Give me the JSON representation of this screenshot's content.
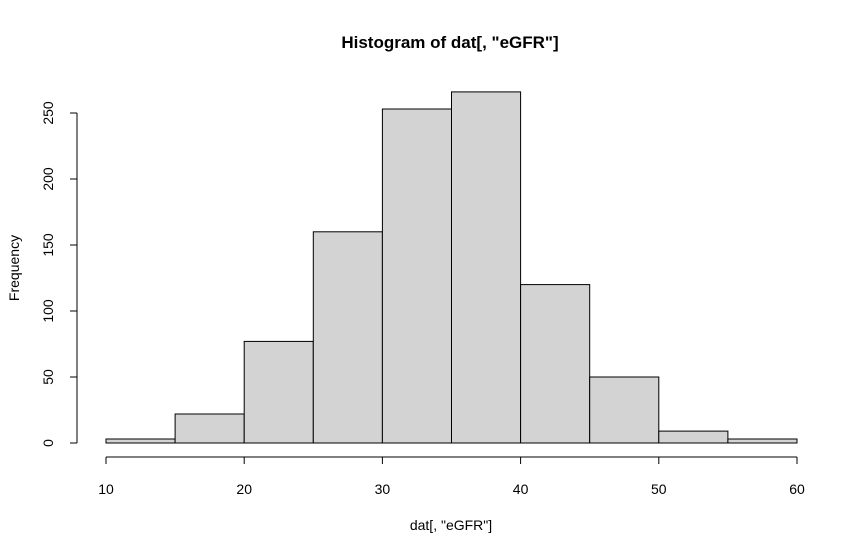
{
  "chart_data": {
    "type": "bar",
    "title": "Histogram of dat[, \"eGFR\"]",
    "xlabel": "dat[, \"eGFR\"]",
    "ylabel": "Frequency",
    "xlim": [
      10,
      60
    ],
    "ylim": [
      0,
      265
    ],
    "bins": [
      {
        "start": 10,
        "end": 15,
        "value": 3
      },
      {
        "start": 15,
        "end": 20,
        "value": 22
      },
      {
        "start": 20,
        "end": 25,
        "value": 77
      },
      {
        "start": 25,
        "end": 30,
        "value": 160
      },
      {
        "start": 30,
        "end": 35,
        "value": 253
      },
      {
        "start": 35,
        "end": 40,
        "value": 266
      },
      {
        "start": 40,
        "end": 45,
        "value": 120
      },
      {
        "start": 45,
        "end": 50,
        "value": 50
      },
      {
        "start": 50,
        "end": 55,
        "value": 9
      },
      {
        "start": 55,
        "end": 60,
        "value": 3
      }
    ],
    "x_ticks": [
      "10",
      "20",
      "30",
      "40",
      "50",
      "60"
    ],
    "y_ticks": [
      "0",
      "50",
      "100",
      "150",
      "200",
      "250"
    ],
    "bar_color": "#D3D3D3",
    "grid": false,
    "legend": "none"
  }
}
